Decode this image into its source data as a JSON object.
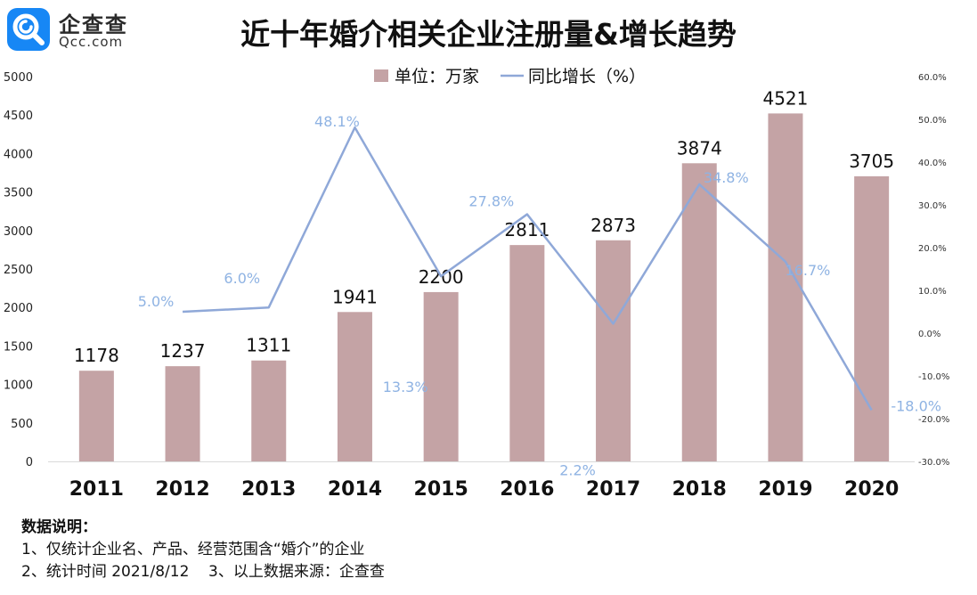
{
  "logo": {
    "name": "企查查",
    "domain": "Qcc.com",
    "icon": "magnifier-icon",
    "color": "#1787f5"
  },
  "title": "近十年婚介相关企业注册量&增长趋势",
  "notes": {
    "heading": "数据说明：",
    "line1": "1、仅统计企业名、产品、经营范围含“婚介”的企业",
    "line2": "2、统计时间 2021/8/12    3、以上数据来源：企查查"
  },
  "chart_data": {
    "type": "bar",
    "categories": [
      "2011",
      "2012",
      "2013",
      "2014",
      "2015",
      "2016",
      "2017",
      "2018",
      "2019",
      "2020"
    ],
    "series": [
      {
        "name": "单位：万家",
        "type": "bar",
        "axis": "left",
        "color": "#c4a3a5",
        "values": [
          1178,
          1237,
          1311,
          1941,
          2200,
          2811,
          2873,
          3874,
          4521,
          3705
        ],
        "labels": [
          "1178",
          "1237",
          "1311",
          "1941",
          "2200",
          "2811",
          "2873",
          "3874",
          "4521",
          "3705"
        ]
      },
      {
        "name": "同比增长（%）",
        "type": "line",
        "axis": "right",
        "color": "#8fa8d8",
        "values": [
          null,
          5.0,
          6.0,
          48.1,
          13.3,
          27.8,
          2.2,
          34.8,
          16.7,
          -18.0
        ],
        "labels": [
          "",
          "5.0%",
          "6.0%",
          "48.1%",
          "13.3%",
          "27.8%",
          "2.2%",
          "34.8%",
          "16.7%",
          "-18.0%"
        ]
      }
    ],
    "ylim": [
      0,
      5000
    ],
    "yticks": [
      "0",
      "500",
      "1000",
      "1500",
      "2000",
      "2500",
      "3000",
      "3500",
      "4000",
      "4500",
      "5000"
    ],
    "y2lim": [
      -30,
      60
    ],
    "y2ticks": [
      "-30.0%",
      "-20.0%",
      "-10.0%",
      "0.0%",
      "10.0%",
      "20.0%",
      "30.0%",
      "40.0%",
      "50.0%",
      "60.0%"
    ],
    "legend": "top-center",
    "grid": false
  }
}
